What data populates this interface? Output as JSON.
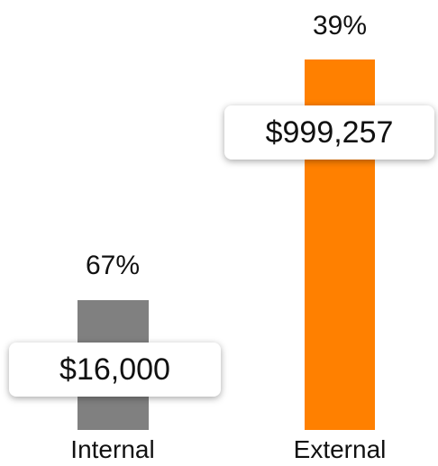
{
  "items": [
    {
      "label": "Internal",
      "percent": "67%",
      "amount": "$16,000",
      "color": "#808080"
    },
    {
      "label": "External",
      "percent": "39%",
      "amount": "$999,257",
      "color": "#ff8000"
    }
  ]
}
